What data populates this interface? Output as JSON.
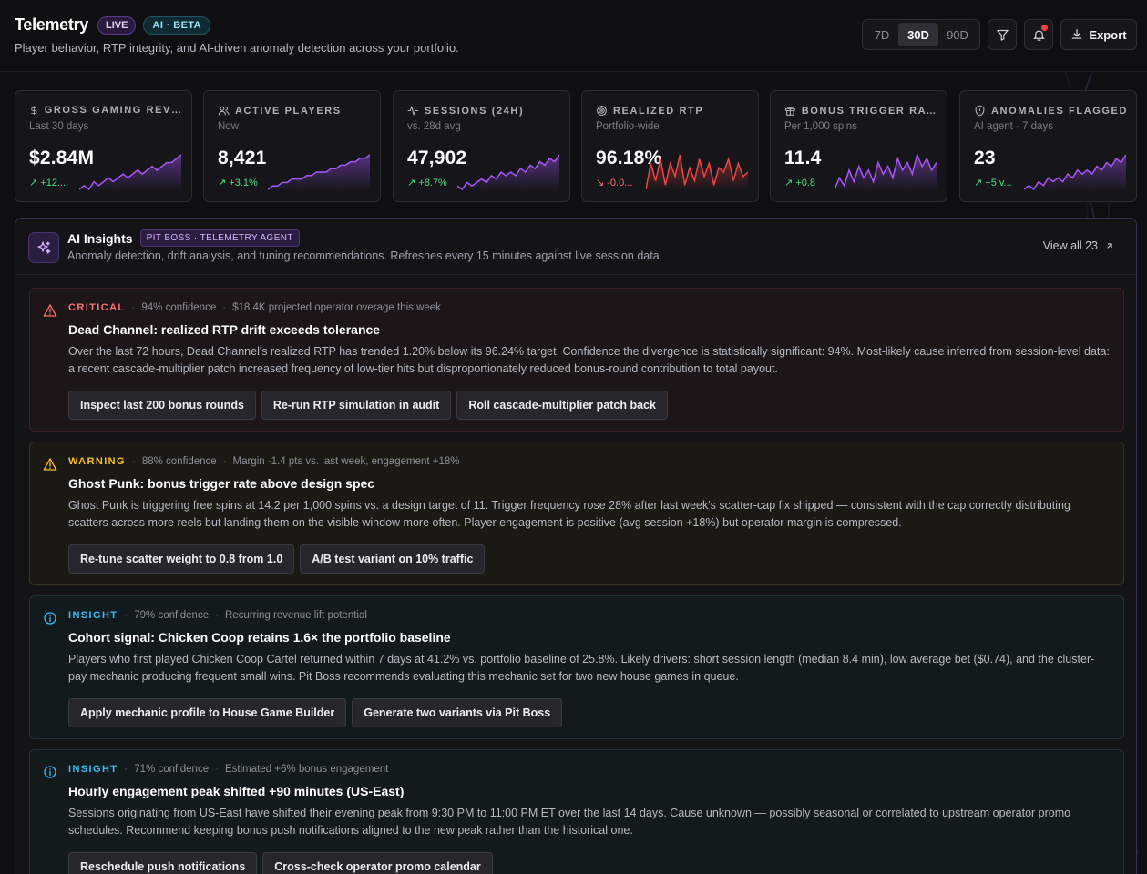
{
  "header": {
    "title": "Telemetry",
    "live_badge": "LIVE",
    "ai_badge": "AI · BETA",
    "subtitle": "Player behavior, RTP integrity, and AI-driven anomaly detection across your portfolio.",
    "ranges": [
      "7D",
      "30D",
      "90D"
    ],
    "selected_range": "30D",
    "export_label": "Export",
    "has_notification": true
  },
  "kpis": [
    {
      "label": "GROSS GAMING REVEN...",
      "sub": "Last 30 days",
      "value": "$2.84M",
      "delta": "↗ +12....",
      "trend": "up",
      "icon": "dollar-icon",
      "spark_color": "#a855f7",
      "spark": [
        3,
        4,
        3,
        5,
        4,
        5,
        6,
        5,
        6,
        7,
        6,
        7,
        8,
        7,
        8,
        9,
        8,
        9,
        10,
        10,
        11,
        12
      ]
    },
    {
      "label": "ACTIVE PLAYERS",
      "sub": "Now",
      "value": "8,421",
      "delta": "↗ +3.1%",
      "trend": "up",
      "icon": "users-icon",
      "spark_color": "#a855f7",
      "spark": [
        2,
        3,
        3,
        4,
        4,
        5,
        5,
        5,
        6,
        6,
        7,
        7,
        7,
        8,
        8,
        9,
        9,
        10,
        10,
        11,
        11,
        12
      ]
    },
    {
      "label": "SESSIONS (24H)",
      "sub": "vs. 28d avg",
      "value": "47,902",
      "delta": "↗ +8.7%",
      "trend": "up",
      "icon": "activity-icon",
      "spark_color": "#a855f7",
      "spark": [
        3,
        2,
        4,
        3,
        4,
        5,
        4,
        6,
        5,
        7,
        6,
        7,
        6,
        8,
        7,
        9,
        8,
        10,
        9,
        11,
        10,
        12
      ]
    },
    {
      "label": "REALIZED RTP",
      "sub": "Portfolio-wide",
      "value": "96.18%",
      "delta": "↘ -0.0...",
      "trend": "down",
      "icon": "target-icon",
      "spark_color": "#ef4444",
      "spark": [
        4,
        10,
        6,
        11,
        5,
        10,
        7,
        12,
        5,
        9,
        6,
        11,
        7,
        10,
        5,
        9,
        8,
        11,
        6,
        10,
        7,
        8
      ]
    },
    {
      "label": "BONUS TRIGGER RATE",
      "sub": "Per 1,000 spins",
      "value": "11.4",
      "delta": "↗ +0.8",
      "trend": "up",
      "icon": "gift-icon",
      "spark_color": "#a855f7",
      "spark": [
        3,
        6,
        4,
        8,
        5,
        9,
        6,
        8,
        5,
        10,
        7,
        9,
        6,
        11,
        8,
        10,
        7,
        12,
        9,
        11,
        8,
        10
      ]
    },
    {
      "label": "ANOMALIES FLAGGED",
      "sub": "AI agent · 7 days",
      "value": "23",
      "delta": "↗ +5 v...",
      "trend": "up",
      "icon": "shield-icon",
      "spark_color": "#a855f7",
      "spark": [
        3,
        4,
        3,
        5,
        4,
        6,
        5,
        6,
        5,
        7,
        6,
        8,
        7,
        8,
        7,
        9,
        8,
        10,
        9,
        11,
        10,
        12
      ]
    }
  ],
  "insights_panel": {
    "title": "AI Insights",
    "agent_badge": "PIT BOSS · TELEMETRY AGENT",
    "description": "Anomaly detection, drift analysis, and tuning recommendations. Refreshes every 15 minutes against live session data.",
    "view_all": "View all 23"
  },
  "cards": [
    {
      "severity": "CRITICAL",
      "confidence": "94% confidence",
      "impact": "$18.4K projected operator overage this week",
      "title": "Dead Channel: realized RTP drift exceeds tolerance",
      "body": "Over the last 72 hours, Dead Channel's realized RTP has trended 1.20% below its 96.24% target. Confidence the divergence is statistically significant: 94%. Most-likely cause inferred from session-level data: a recent cascade-multiplier patch increased frequency of low-tier hits but disproportionately reduced bonus-round contribution to total payout.",
      "actions": [
        "Inspect last 200 bonus rounds",
        "Re-run RTP simulation in audit",
        "Roll cascade-multiplier patch back"
      ]
    },
    {
      "severity": "WARNING",
      "confidence": "88% confidence",
      "impact": "Margin -1.4 pts vs. last week, engagement +18%",
      "title": "Ghost Punk: bonus trigger rate above design spec",
      "body": "Ghost Punk is triggering free spins at 14.2 per 1,000 spins vs. a design target of 11. Trigger frequency rose 28% after last week's scatter-cap fix shipped — consistent with the cap correctly distributing scatters across more reels but landing them on the visible window more often. Player engagement is positive (avg session +18%) but operator margin is compressed.",
      "actions": [
        "Re-tune scatter weight to 0.8 from 1.0",
        "A/B test variant on 10% traffic"
      ]
    },
    {
      "severity": "INSIGHT",
      "confidence": "79% confidence",
      "impact": "Recurring revenue lift potential",
      "title": "Cohort signal: Chicken Coop retains 1.6× the portfolio baseline",
      "body": "Players who first played Chicken Coop Cartel returned within 7 days at 41.2% vs. portfolio baseline of 25.8%. Likely drivers: short session length (median 8.4 min), low average bet ($0.74), and the cluster-pay mechanic producing frequent small wins. Pit Boss recommends evaluating this mechanic set for two new house games in queue.",
      "actions": [
        "Apply mechanic profile to House Game Builder",
        "Generate two variants via Pit Boss"
      ]
    },
    {
      "severity": "INSIGHT",
      "confidence": "71% confidence",
      "impact": "Estimated +6% bonus engagement",
      "title": "Hourly engagement peak shifted +90 minutes (US-East)",
      "body": "Sessions originating from US-East have shifted their evening peak from 9:30 PM to 11:00 PM ET over the last 14 days. Cause unknown — possibly seasonal or correlated to upstream operator promo schedules. Recommend keeping bonus push notifications aligned to the new peak rather than the historical one.",
      "actions": [
        "Reschedule push notifications",
        "Cross-check operator promo calendar"
      ]
    }
  ]
}
